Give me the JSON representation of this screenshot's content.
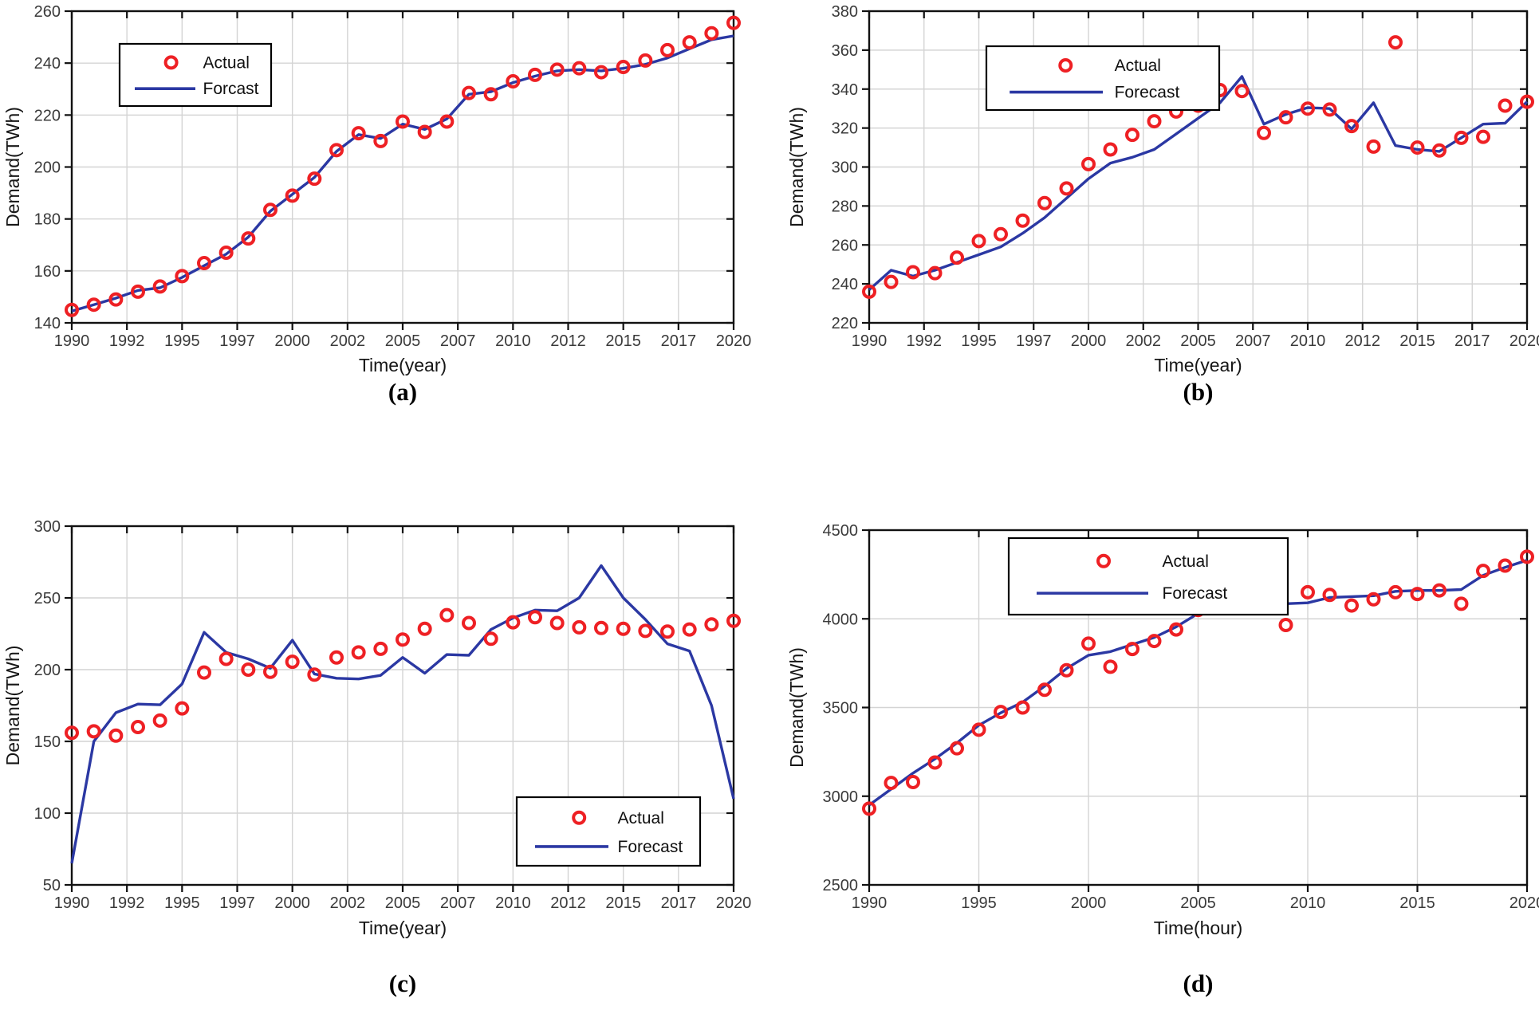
{
  "figure": {
    "background": "#ffffff",
    "colors": {
      "actual": "#ee2024",
      "forecast": "#2b38a3",
      "grid": "#d4d4d4",
      "axis": "#111111",
      "tick_text": "#3a3a3a",
      "label_text": "#161616"
    }
  },
  "chart_data": [
    {
      "id": "a",
      "type": "line+scatter",
      "caption": "(a)",
      "xlabel": "Time(year)",
      "ylabel": "Demand(TWh)",
      "ylim": [
        140,
        260
      ],
      "x_tick_labels": [
        "1990",
        "1992",
        "1995",
        "1997",
        "2000",
        "2002",
        "2005",
        "2007",
        "2010",
        "2012",
        "2015",
        "2017",
        "2020"
      ],
      "y_tick_labels": [
        "140",
        "160",
        "180",
        "200",
        "220",
        "240",
        "260"
      ],
      "years": [
        1990,
        1991,
        1992,
        1993,
        1994,
        1995,
        1996,
        1997,
        1998,
        1999,
        2000,
        2001,
        2002,
        2003,
        2004,
        2005,
        2006,
        2007,
        2008,
        2009,
        2010,
        2011,
        2012,
        2013,
        2014,
        2015,
        2016,
        2017,
        2018,
        2019,
        2020
      ],
      "legend": {
        "actual_label": "Actual",
        "forecast_label": "Forcast",
        "position": "upper-left"
      },
      "series": [
        {
          "name": "Actual",
          "style": "scatter",
          "values": [
            145,
            147,
            149,
            152,
            154,
            158,
            163,
            167,
            172.5,
            183.5,
            189,
            195.5,
            206.5,
            213,
            210,
            217.5,
            213.5,
            217.5,
            228.5,
            228,
            233,
            235.5,
            237.5,
            238,
            236.5,
            238.5,
            241,
            245,
            248,
            251.5,
            255.5
          ]
        },
        {
          "name": "Forcast",
          "style": "line",
          "values": [
            144.5,
            147,
            149.5,
            152.5,
            153.5,
            157.5,
            162,
            166.5,
            173,
            183,
            189.5,
            196,
            206,
            212.5,
            211,
            216.5,
            214.5,
            218.5,
            228,
            229,
            232.5,
            235,
            237,
            237.5,
            237,
            238,
            239.5,
            242,
            245.5,
            249,
            250.5
          ]
        }
      ]
    },
    {
      "id": "b",
      "type": "line+scatter",
      "caption": "(b)",
      "xlabel": "Time(year)",
      "ylabel": "Demand(TWh)",
      "ylim": [
        220,
        380
      ],
      "x_tick_labels": [
        "1990",
        "1992",
        "1995",
        "1997",
        "2000",
        "2002",
        "2005",
        "2007",
        "2010",
        "2012",
        "2015",
        "2017",
        "2020"
      ],
      "y_tick_labels": [
        "220",
        "240",
        "260",
        "280",
        "300",
        "320",
        "340",
        "360",
        "380"
      ],
      "years": [
        1990,
        1991,
        1992,
        1993,
        1994,
        1995,
        1996,
        1997,
        1998,
        1999,
        2000,
        2001,
        2002,
        2003,
        2004,
        2005,
        2006,
        2007,
        2008,
        2009,
        2010,
        2011,
        2012,
        2013,
        2014,
        2015,
        2016,
        2017,
        2018,
        2019,
        2020
      ],
      "legend": {
        "actual_label": "Actual",
        "forecast_label": "Forecast",
        "position": "upper-center"
      },
      "series": [
        {
          "name": "Actual",
          "style": "scatter",
          "values": [
            236,
            241,
            246,
            245.5,
            253.5,
            262,
            265.5,
            272.5,
            281.5,
            289,
            301.5,
            309,
            316.5,
            323.5,
            328.5,
            331.5,
            339.5,
            339,
            317.5,
            325.5,
            330,
            329.5,
            321,
            310.5,
            364,
            310,
            308.5,
            315,
            315.5,
            331.5,
            333.5
          ]
        },
        {
          "name": "Forecast",
          "style": "line",
          "values": [
            237,
            247,
            244,
            247,
            251,
            255,
            259,
            266,
            274,
            284,
            294,
            302,
            305,
            309,
            317,
            325,
            333,
            346.5,
            322,
            327,
            330.5,
            330,
            319.5,
            333,
            311,
            309,
            308,
            315,
            322,
            322.5,
            333.5
          ]
        }
      ]
    },
    {
      "id": "c",
      "type": "line+scatter",
      "caption": "(c)",
      "xlabel": "Time(year)",
      "ylabel": "Demand(TWh)",
      "ylim": [
        50,
        300
      ],
      "x_tick_labels": [
        "1990",
        "1992",
        "1995",
        "1997",
        "2000",
        "2002",
        "2005",
        "2007",
        "2010",
        "2012",
        "2015",
        "2017",
        "2020"
      ],
      "y_tick_labels": [
        "50",
        "100",
        "150",
        "200",
        "250",
        "300"
      ],
      "years": [
        1990,
        1991,
        1992,
        1993,
        1994,
        1995,
        1996,
        1997,
        1998,
        1999,
        2000,
        2001,
        2002,
        2003,
        2004,
        2005,
        2006,
        2007,
        2008,
        2009,
        2010,
        2011,
        2012,
        2013,
        2014,
        2015,
        2016,
        2017,
        2018,
        2019,
        2020
      ],
      "legend": {
        "actual_label": "Actual",
        "forecast_label": "Forecast",
        "position": "lower-right"
      },
      "series": [
        {
          "name": "Actual",
          "style": "scatter",
          "values": [
            156,
            157,
            154,
            160,
            164.5,
            173,
            198,
            207.5,
            200,
            198.5,
            205.5,
            196.5,
            208.5,
            212,
            214.5,
            221,
            228.5,
            238,
            232.5,
            221.5,
            233,
            236.5,
            232.5,
            229.5,
            229,
            228.5,
            227,
            226.5,
            228,
            231.5,
            234
          ]
        },
        {
          "name": "Forecast",
          "style": "line",
          "values": [
            65,
            150,
            170,
            176,
            175.5,
            190,
            226,
            212,
            207.5,
            201,
            220.5,
            197,
            194,
            193.5,
            196,
            208.5,
            197.5,
            210.5,
            210,
            228,
            236,
            241.5,
            241,
            250,
            272.5,
            250,
            235,
            218,
            213,
            175,
            110
          ]
        }
      ]
    },
    {
      "id": "d",
      "type": "line+scatter",
      "caption": "(d)",
      "xlabel": "Time(hour)",
      "ylabel": "Demand(TWh)",
      "ylim": [
        2500,
        4500
      ],
      "x_tick_labels": [
        "1990",
        "1995",
        "2000",
        "2005",
        "2010",
        "2015",
        "2020"
      ],
      "y_tick_labels": [
        "2500",
        "3000",
        "3500",
        "4000",
        "4500"
      ],
      "years": [
        1990,
        1991,
        1992,
        1993,
        1994,
        1995,
        1996,
        1997,
        1998,
        1999,
        2000,
        2001,
        2002,
        2003,
        2004,
        2005,
        2006,
        2007,
        2008,
        2009,
        2010,
        2011,
        2012,
        2013,
        2014,
        2015,
        2016,
        2017,
        2018,
        2019,
        2020
      ],
      "legend": {
        "actual_label": "Actual",
        "forecast_label": "Forecast",
        "position": "upper-center"
      },
      "series": [
        {
          "name": "Actual",
          "style": "scatter",
          "values": [
            2930,
            3075,
            3080,
            3190,
            3270,
            3375,
            3475,
            3500,
            3600,
            3710,
            3860,
            3730,
            3830,
            3875,
            3940,
            4050,
            4060,
            4125,
            4150,
            3965,
            4150,
            4135,
            4075,
            4110,
            4150,
            4140,
            4160,
            4085,
            4270,
            4300,
            4350
          ]
        },
        {
          "name": "Forecast",
          "style": "line",
          "values": [
            2950,
            3040,
            3130,
            3210,
            3300,
            3400,
            3470,
            3530,
            3620,
            3720,
            3795,
            3815,
            3855,
            3895,
            3955,
            4030,
            4045,
            4085,
            4100,
            4085,
            4090,
            4120,
            4125,
            4130,
            4155,
            4160,
            4160,
            4165,
            4245,
            4290,
            4330
          ]
        }
      ]
    }
  ]
}
